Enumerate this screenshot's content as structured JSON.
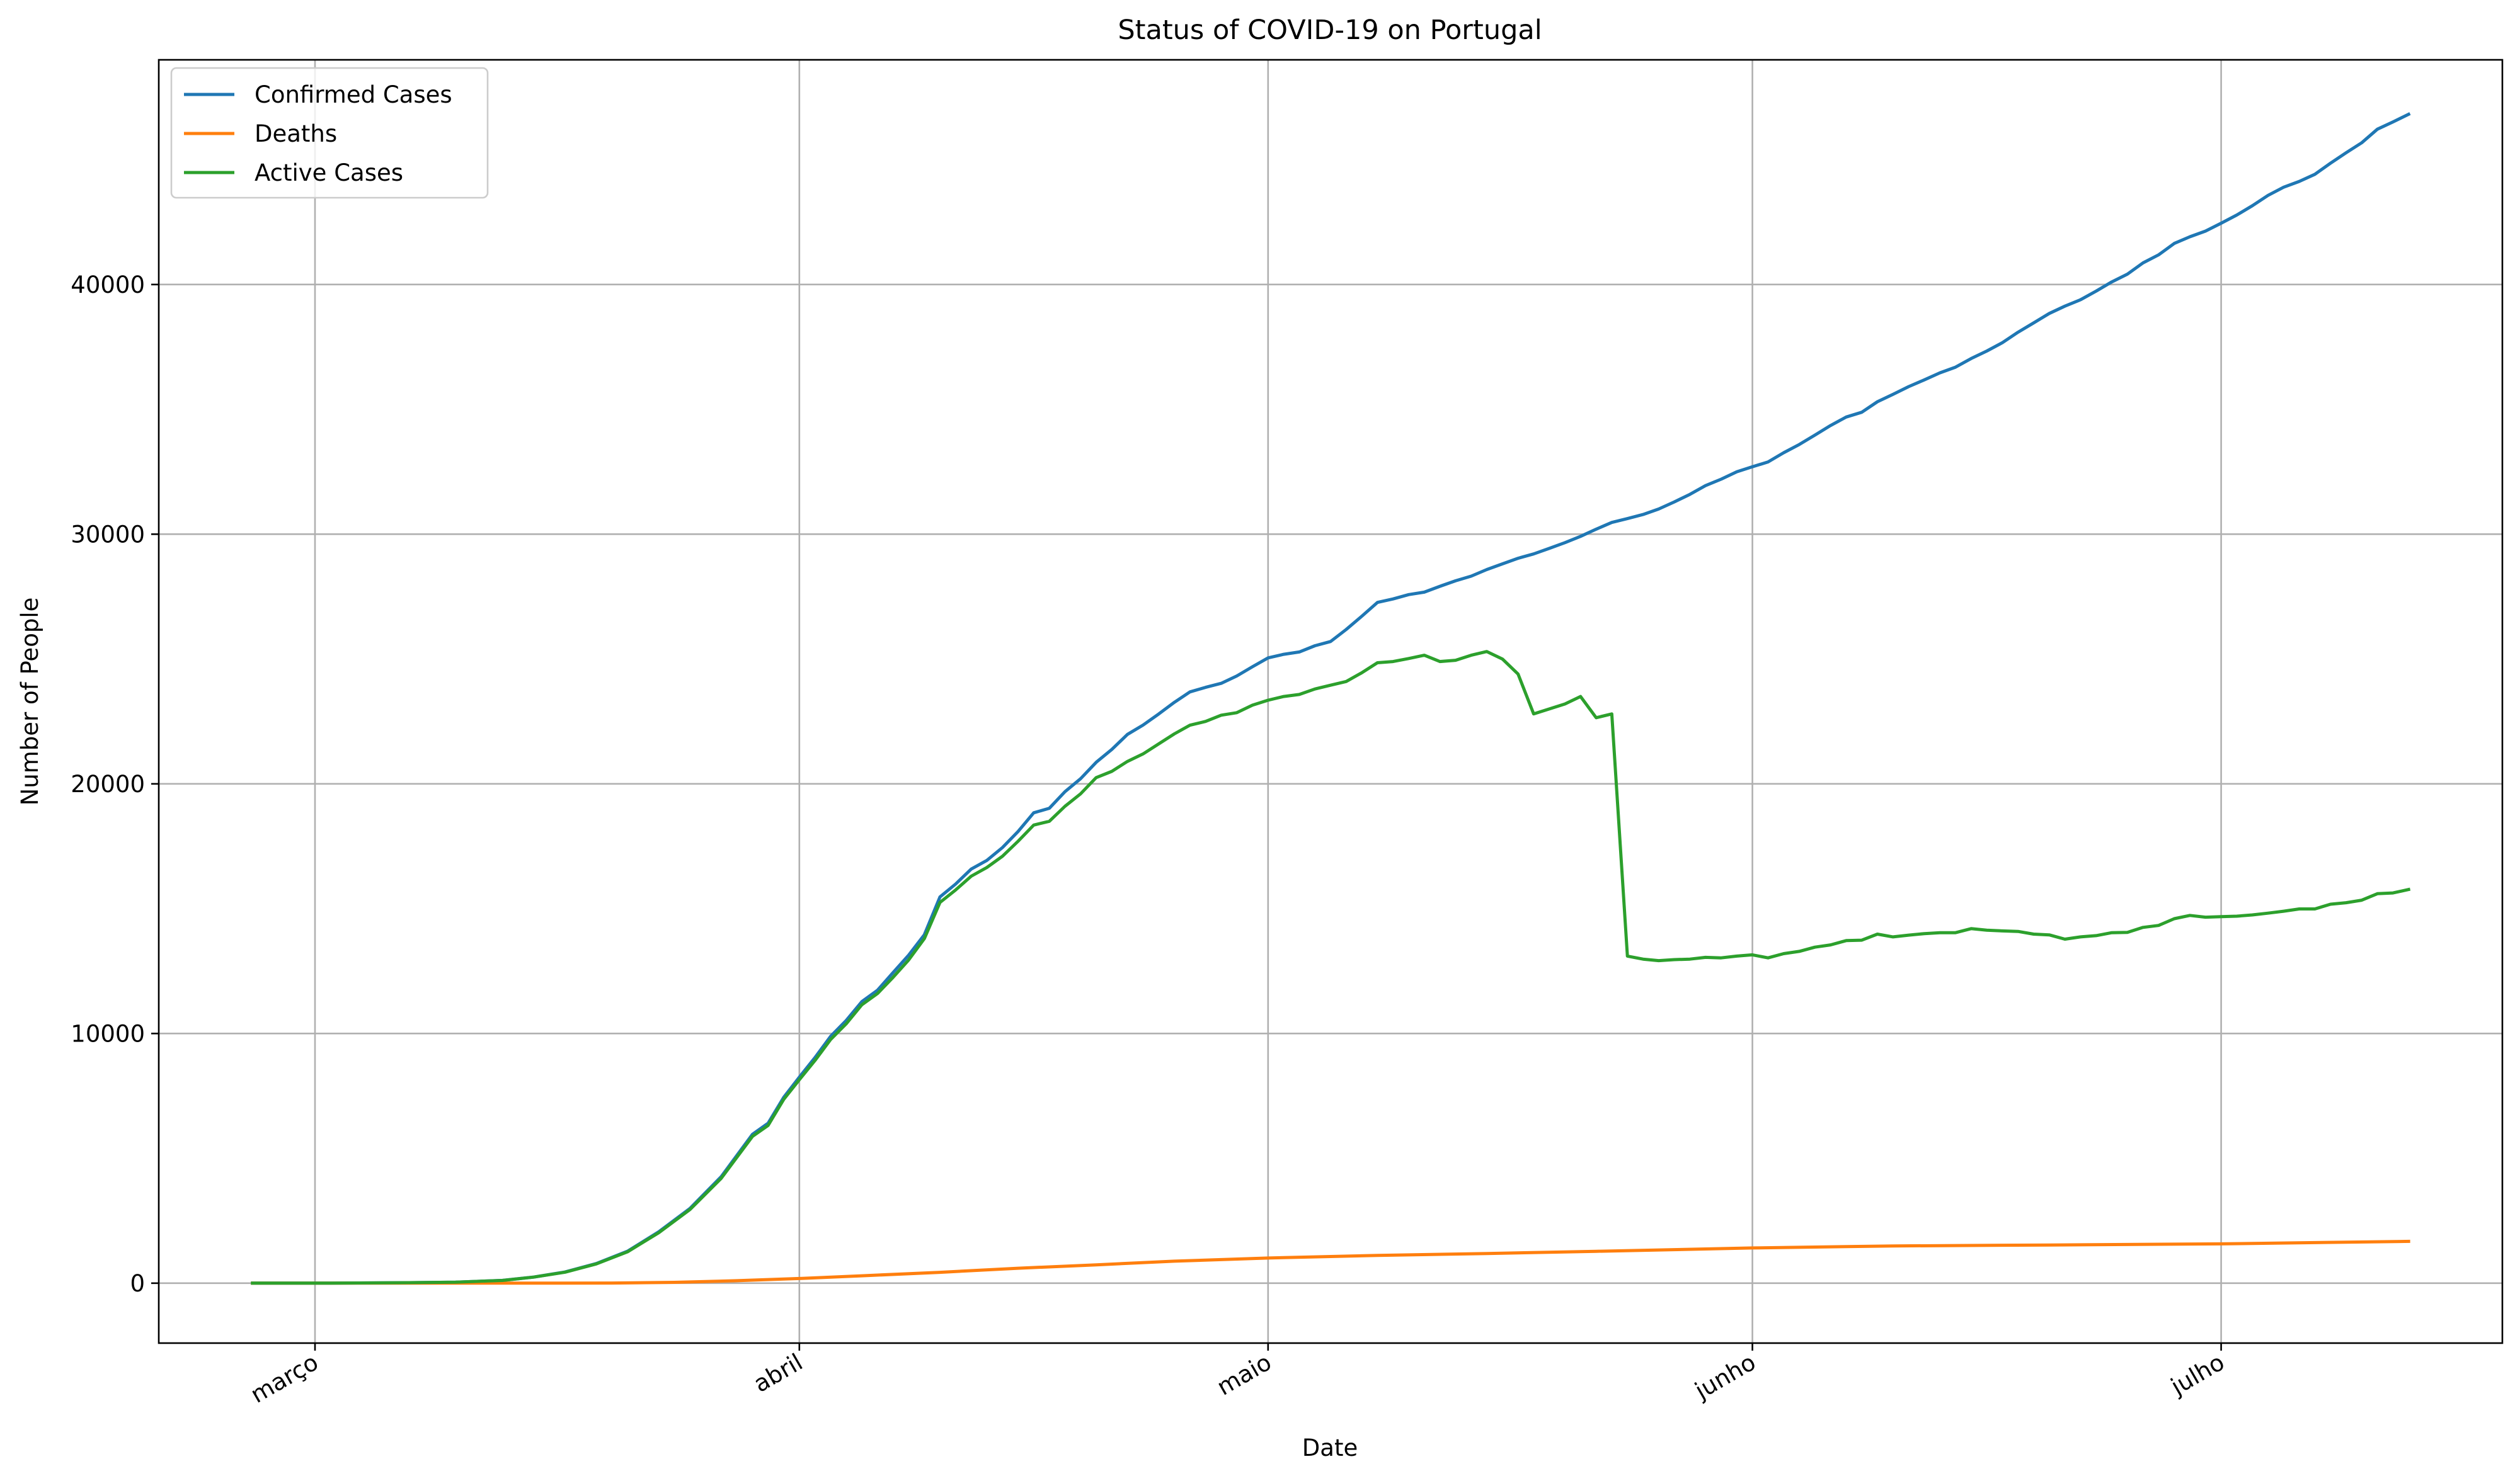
{
  "chart_data": {
    "type": "line",
    "title": "Status of COVID-19 on Portugal",
    "xlabel": "Date",
    "ylabel": "Number of People",
    "x_ticks": [
      {
        "date": "2020-03-01",
        "label": "março"
      },
      {
        "date": "2020-04-01",
        "label": "abril"
      },
      {
        "date": "2020-05-01",
        "label": "maio"
      },
      {
        "date": "2020-06-01",
        "label": "junho"
      },
      {
        "date": "2020-07-01",
        "label": "julho"
      }
    ],
    "xlim": [
      "2020-02-20",
      "2020-07-19"
    ],
    "ylim": [
      -2400,
      49000
    ],
    "y_ticks": [
      0,
      10000,
      20000,
      30000,
      40000
    ],
    "grid": true,
    "legend_position": "top-left",
    "series": [
      {
        "name": "Confirmed Cases",
        "color": "#1f77b4",
        "points": [
          [
            "2020-02-26",
            0
          ],
          [
            "2020-03-02",
            2
          ],
          [
            "2020-03-07",
            21
          ],
          [
            "2020-03-10",
            41
          ],
          [
            "2020-03-13",
            112
          ],
          [
            "2020-03-15",
            245
          ],
          [
            "2020-03-17",
            448
          ],
          [
            "2020-03-19",
            785
          ],
          [
            "2020-03-21",
            1280
          ],
          [
            "2020-03-23",
            2060
          ],
          [
            "2020-03-25",
            2995
          ],
          [
            "2020-03-27",
            4268
          ],
          [
            "2020-03-29",
            5962
          ],
          [
            "2020-03-30",
            6408
          ],
          [
            "2020-03-31",
            7443
          ],
          [
            "2020-04-01",
            8251
          ],
          [
            "2020-04-02",
            9034
          ],
          [
            "2020-04-03",
            9886
          ],
          [
            "2020-04-04",
            10524
          ],
          [
            "2020-04-05",
            11278
          ],
          [
            "2020-04-06",
            11730
          ],
          [
            "2020-04-07",
            12442
          ],
          [
            "2020-04-08",
            13141
          ],
          [
            "2020-04-09",
            13956
          ],
          [
            "2020-04-10",
            15472
          ],
          [
            "2020-04-11",
            15987
          ],
          [
            "2020-04-12",
            16585
          ],
          [
            "2020-04-13",
            16934
          ],
          [
            "2020-04-14",
            17448
          ],
          [
            "2020-04-15",
            18091
          ],
          [
            "2020-04-16",
            18841
          ],
          [
            "2020-04-17",
            19022
          ],
          [
            "2020-04-18",
            19685
          ],
          [
            "2020-04-19",
            20206
          ],
          [
            "2020-04-20",
            20863
          ],
          [
            "2020-04-21",
            21379
          ],
          [
            "2020-04-22",
            21982
          ],
          [
            "2020-04-23",
            22353
          ],
          [
            "2020-04-24",
            22797
          ],
          [
            "2020-04-25",
            23264
          ],
          [
            "2020-04-26",
            23683
          ],
          [
            "2020-04-27",
            23864
          ],
          [
            "2020-04-28",
            24027
          ],
          [
            "2020-04-29",
            24322
          ],
          [
            "2020-04-30",
            24690
          ],
          [
            "2020-05-01",
            25045
          ],
          [
            "2020-05-02",
            25190
          ],
          [
            "2020-05-03",
            25283
          ],
          [
            "2020-05-04",
            25531
          ],
          [
            "2020-05-05",
            25700
          ],
          [
            "2020-05-06",
            26182
          ],
          [
            "2020-05-07",
            26715
          ],
          [
            "2020-05-08",
            27268
          ],
          [
            "2020-05-09",
            27406
          ],
          [
            "2020-05-10",
            27581
          ],
          [
            "2020-05-11",
            27679
          ],
          [
            "2020-05-12",
            27913
          ],
          [
            "2020-05-13",
            28132
          ],
          [
            "2020-05-14",
            28319
          ],
          [
            "2020-05-15",
            28583
          ],
          [
            "2020-05-16",
            28810
          ],
          [
            "2020-05-17",
            29036
          ],
          [
            "2020-05-18",
            29209
          ],
          [
            "2020-05-19",
            29432
          ],
          [
            "2020-05-20",
            29660
          ],
          [
            "2020-05-21",
            29912
          ],
          [
            "2020-05-22",
            30200
          ],
          [
            "2020-05-23",
            30471
          ],
          [
            "2020-05-24",
            30623
          ],
          [
            "2020-05-25",
            30788
          ],
          [
            "2020-05-26",
            31007
          ],
          [
            "2020-05-27",
            31292
          ],
          [
            "2020-05-28",
            31596
          ],
          [
            "2020-05-29",
            31946
          ],
          [
            "2020-05-30",
            32203
          ],
          [
            "2020-05-31",
            32500
          ],
          [
            "2020-06-01",
            32700
          ],
          [
            "2020-06-02",
            32895
          ],
          [
            "2020-06-03",
            33261
          ],
          [
            "2020-06-04",
            33592
          ],
          [
            "2020-06-05",
            33969
          ],
          [
            "2020-06-06",
            34351
          ],
          [
            "2020-06-07",
            34693
          ],
          [
            "2020-06-08",
            34885
          ],
          [
            "2020-06-09",
            35306
          ],
          [
            "2020-06-10",
            35600
          ],
          [
            "2020-06-11",
            35910
          ],
          [
            "2020-06-12",
            36180
          ],
          [
            "2020-06-13",
            36463
          ],
          [
            "2020-06-14",
            36690
          ],
          [
            "2020-06-15",
            37036
          ],
          [
            "2020-06-16",
            37336
          ],
          [
            "2020-06-17",
            37672
          ],
          [
            "2020-06-18",
            38089
          ],
          [
            "2020-06-19",
            38464
          ],
          [
            "2020-06-20",
            38841
          ],
          [
            "2020-06-21",
            39133
          ],
          [
            "2020-06-22",
            39392
          ],
          [
            "2020-06-23",
            39737
          ],
          [
            "2020-06-24",
            40104
          ],
          [
            "2020-06-25",
            40415
          ],
          [
            "2020-06-26",
            40866
          ],
          [
            "2020-06-27",
            41189
          ],
          [
            "2020-06-28",
            41646
          ],
          [
            "2020-06-29",
            41912
          ],
          [
            "2020-06-30",
            42141
          ],
          [
            "2020-07-01",
            42454
          ],
          [
            "2020-07-02",
            42782
          ],
          [
            "2020-07-03",
            43156
          ],
          [
            "2020-07-04",
            43569
          ],
          [
            "2020-07-05",
            43897
          ],
          [
            "2020-07-06",
            44129
          ],
          [
            "2020-07-07",
            44416
          ],
          [
            "2020-07-08",
            44859
          ],
          [
            "2020-07-09",
            45277
          ],
          [
            "2020-07-10",
            45679
          ],
          [
            "2020-07-11",
            46221
          ],
          [
            "2020-07-12",
            46512
          ],
          [
            "2020-07-13",
            46818
          ]
        ]
      },
      {
        "name": "Deaths",
        "color": "#ff7f0e",
        "points": [
          [
            "2020-02-26",
            0
          ],
          [
            "2020-03-16",
            0
          ],
          [
            "2020-03-20",
            6
          ],
          [
            "2020-03-24",
            33
          ],
          [
            "2020-03-28",
            100
          ],
          [
            "2020-04-01",
            187
          ],
          [
            "2020-04-05",
            295
          ],
          [
            "2020-04-10",
            435
          ],
          [
            "2020-04-15",
            599
          ],
          [
            "2020-04-20",
            735
          ],
          [
            "2020-04-25",
            880
          ],
          [
            "2020-05-01",
            1007
          ],
          [
            "2020-05-08",
            1114
          ],
          [
            "2020-05-15",
            1190
          ],
          [
            "2020-05-22",
            1277
          ],
          [
            "2020-06-01",
            1410
          ],
          [
            "2020-06-10",
            1492
          ],
          [
            "2020-06-20",
            1530
          ],
          [
            "2020-07-01",
            1576
          ],
          [
            "2020-07-13",
            1676
          ]
        ]
      },
      {
        "name": "Active Cases",
        "color": "#2ca02c",
        "points": [
          [
            "2020-02-26",
            0
          ],
          [
            "2020-03-02",
            2
          ],
          [
            "2020-03-07",
            21
          ],
          [
            "2020-03-10",
            41
          ],
          [
            "2020-03-13",
            110
          ],
          [
            "2020-03-15",
            243
          ],
          [
            "2020-03-17",
            440
          ],
          [
            "2020-03-19",
            770
          ],
          [
            "2020-03-21",
            1255
          ],
          [
            "2020-03-23",
            2020
          ],
          [
            "2020-03-25",
            2950
          ],
          [
            "2020-03-27",
            4200
          ],
          [
            "2020-03-29",
            5880
          ],
          [
            "2020-03-30",
            6320
          ],
          [
            "2020-03-31",
            7360
          ],
          [
            "2020-04-01",
            8150
          ],
          [
            "2020-04-02",
            8920
          ],
          [
            "2020-04-03",
            9760
          ],
          [
            "2020-04-04",
            10390
          ],
          [
            "2020-04-05",
            11150
          ],
          [
            "2020-04-06",
            11600
          ],
          [
            "2020-04-07",
            12250
          ],
          [
            "2020-04-08",
            12950
          ],
          [
            "2020-04-09",
            13800
          ],
          [
            "2020-04-10",
            15250
          ],
          [
            "2020-04-11",
            15750
          ],
          [
            "2020-04-12",
            16300
          ],
          [
            "2020-04-13",
            16650
          ],
          [
            "2020-04-14",
            17100
          ],
          [
            "2020-04-15",
            17700
          ],
          [
            "2020-04-16",
            18350
          ],
          [
            "2020-04-17",
            18500
          ],
          [
            "2020-04-18",
            19100
          ],
          [
            "2020-04-19",
            19600
          ],
          [
            "2020-04-20",
            20250
          ],
          [
            "2020-04-21",
            20500
          ],
          [
            "2020-04-22",
            20900
          ],
          [
            "2020-04-23",
            21200
          ],
          [
            "2020-04-24",
            21600
          ],
          [
            "2020-04-25",
            22000
          ],
          [
            "2020-04-26",
            22350
          ],
          [
            "2020-04-27",
            22500
          ],
          [
            "2020-04-28",
            22750
          ],
          [
            "2020-04-29",
            22850
          ],
          [
            "2020-04-30",
            23150
          ],
          [
            "2020-05-01",
            23350
          ],
          [
            "2020-05-02",
            23500
          ],
          [
            "2020-05-03",
            23580
          ],
          [
            "2020-05-04",
            23800
          ],
          [
            "2020-05-05",
            23950
          ],
          [
            "2020-05-06",
            24100
          ],
          [
            "2020-05-07",
            24450
          ],
          [
            "2020-05-08",
            24850
          ],
          [
            "2020-05-09",
            24900
          ],
          [
            "2020-05-10",
            25020
          ],
          [
            "2020-05-11",
            25150
          ],
          [
            "2020-05-12",
            24900
          ],
          [
            "2020-05-13",
            24950
          ],
          [
            "2020-05-14",
            25150
          ],
          [
            "2020-05-15",
            25300
          ],
          [
            "2020-05-16",
            25000
          ],
          [
            "2020-05-17",
            24400
          ],
          [
            "2020-05-18",
            22800
          ],
          [
            "2020-05-19",
            23000
          ],
          [
            "2020-05-20",
            23200
          ],
          [
            "2020-05-21",
            23500
          ],
          [
            "2020-05-22",
            22650
          ],
          [
            "2020-05-23",
            22800
          ],
          [
            "2020-05-24",
            13100
          ],
          [
            "2020-05-25",
            12980
          ],
          [
            "2020-05-26",
            12920
          ],
          [
            "2020-05-27",
            12960
          ],
          [
            "2020-05-28",
            12980
          ],
          [
            "2020-05-29",
            13050
          ],
          [
            "2020-05-30",
            13030
          ],
          [
            "2020-05-31",
            13100
          ],
          [
            "2020-06-01",
            13150
          ],
          [
            "2020-06-02",
            13030
          ],
          [
            "2020-06-03",
            13200
          ],
          [
            "2020-06-04",
            13290
          ],
          [
            "2020-06-05",
            13460
          ],
          [
            "2020-06-06",
            13550
          ],
          [
            "2020-06-07",
            13720
          ],
          [
            "2020-06-08",
            13740
          ],
          [
            "2020-06-09",
            13980
          ],
          [
            "2020-06-10",
            13870
          ],
          [
            "2020-06-11",
            13940
          ],
          [
            "2020-06-12",
            14000
          ],
          [
            "2020-06-13",
            14040
          ],
          [
            "2020-06-14",
            14040
          ],
          [
            "2020-06-15",
            14200
          ],
          [
            "2020-06-16",
            14140
          ],
          [
            "2020-06-17",
            14110
          ],
          [
            "2020-06-18",
            14090
          ],
          [
            "2020-06-19",
            13980
          ],
          [
            "2020-06-20",
            13950
          ],
          [
            "2020-06-21",
            13780
          ],
          [
            "2020-06-22",
            13870
          ],
          [
            "2020-06-23",
            13920
          ],
          [
            "2020-06-24",
            14040
          ],
          [
            "2020-06-25",
            14050
          ],
          [
            "2020-06-26",
            14250
          ],
          [
            "2020-06-27",
            14330
          ],
          [
            "2020-06-28",
            14600
          ],
          [
            "2020-06-29",
            14730
          ],
          [
            "2020-06-30",
            14660
          ],
          [
            "2020-07-01",
            14680
          ],
          [
            "2020-07-02",
            14700
          ],
          [
            "2020-07-03",
            14750
          ],
          [
            "2020-07-04",
            14820
          ],
          [
            "2020-07-05",
            14900
          ],
          [
            "2020-07-06",
            14990
          ],
          [
            "2020-07-07",
            14990
          ],
          [
            "2020-07-08",
            15180
          ],
          [
            "2020-07-09",
            15240
          ],
          [
            "2020-07-10",
            15340
          ],
          [
            "2020-07-11",
            15600
          ],
          [
            "2020-07-12",
            15630
          ],
          [
            "2020-07-13",
            15770
          ]
        ]
      }
    ]
  }
}
